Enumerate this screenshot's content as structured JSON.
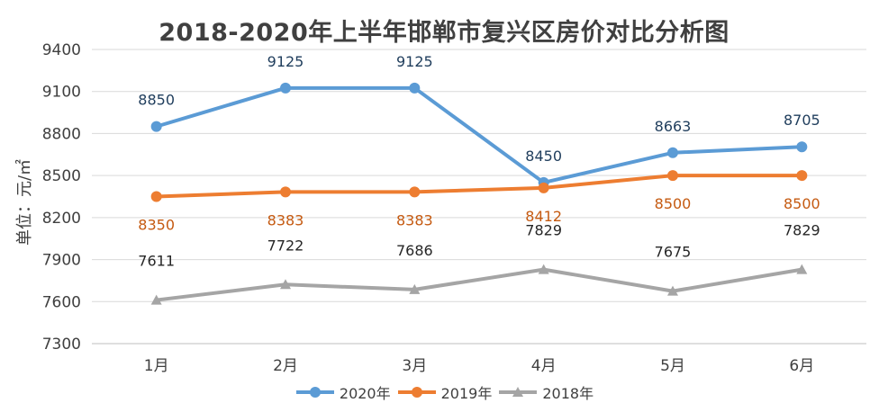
{
  "chart_data": {
    "type": "line",
    "title": "2018-2020年上半年邯郸市复兴区房价对比分析图",
    "ylabel": "单位：元/㎡",
    "xlabel": "",
    "categories": [
      "1月",
      "2月",
      "3月",
      "4月",
      "5月",
      "6月"
    ],
    "ylim": [
      7300,
      9400
    ],
    "yticks": [
      "7300",
      "7600",
      "7900",
      "8200",
      "8500",
      "8800",
      "9100",
      "9400"
    ],
    "grid": true,
    "legend_position": "bottom",
    "series": [
      {
        "name": "2020年",
        "color": "#5b9bd5",
        "marker": "circle",
        "label_color": "#1f3d5c",
        "values": [
          8850,
          9125,
          9125,
          8450,
          8663,
          8705
        ],
        "labels": [
          "8850",
          "9125",
          "9125",
          "8450",
          "8663",
          "8705"
        ]
      },
      {
        "name": "2019年",
        "color": "#ed7d31",
        "marker": "circle",
        "label_color": "#c55a11",
        "values": [
          8350,
          8383,
          8383,
          8412,
          8500,
          8500
        ],
        "labels": [
          "8350",
          "8383",
          "8383",
          "8412",
          "8500",
          "8500"
        ]
      },
      {
        "name": "2018年",
        "color": "#a5a5a5",
        "marker": "triangle",
        "label_color": "#262626",
        "values": [
          7611,
          7722,
          7686,
          7829,
          7675,
          7829
        ],
        "labels": [
          "7611",
          "7722",
          "7686",
          "7829",
          "7675",
          "7829"
        ]
      }
    ]
  }
}
